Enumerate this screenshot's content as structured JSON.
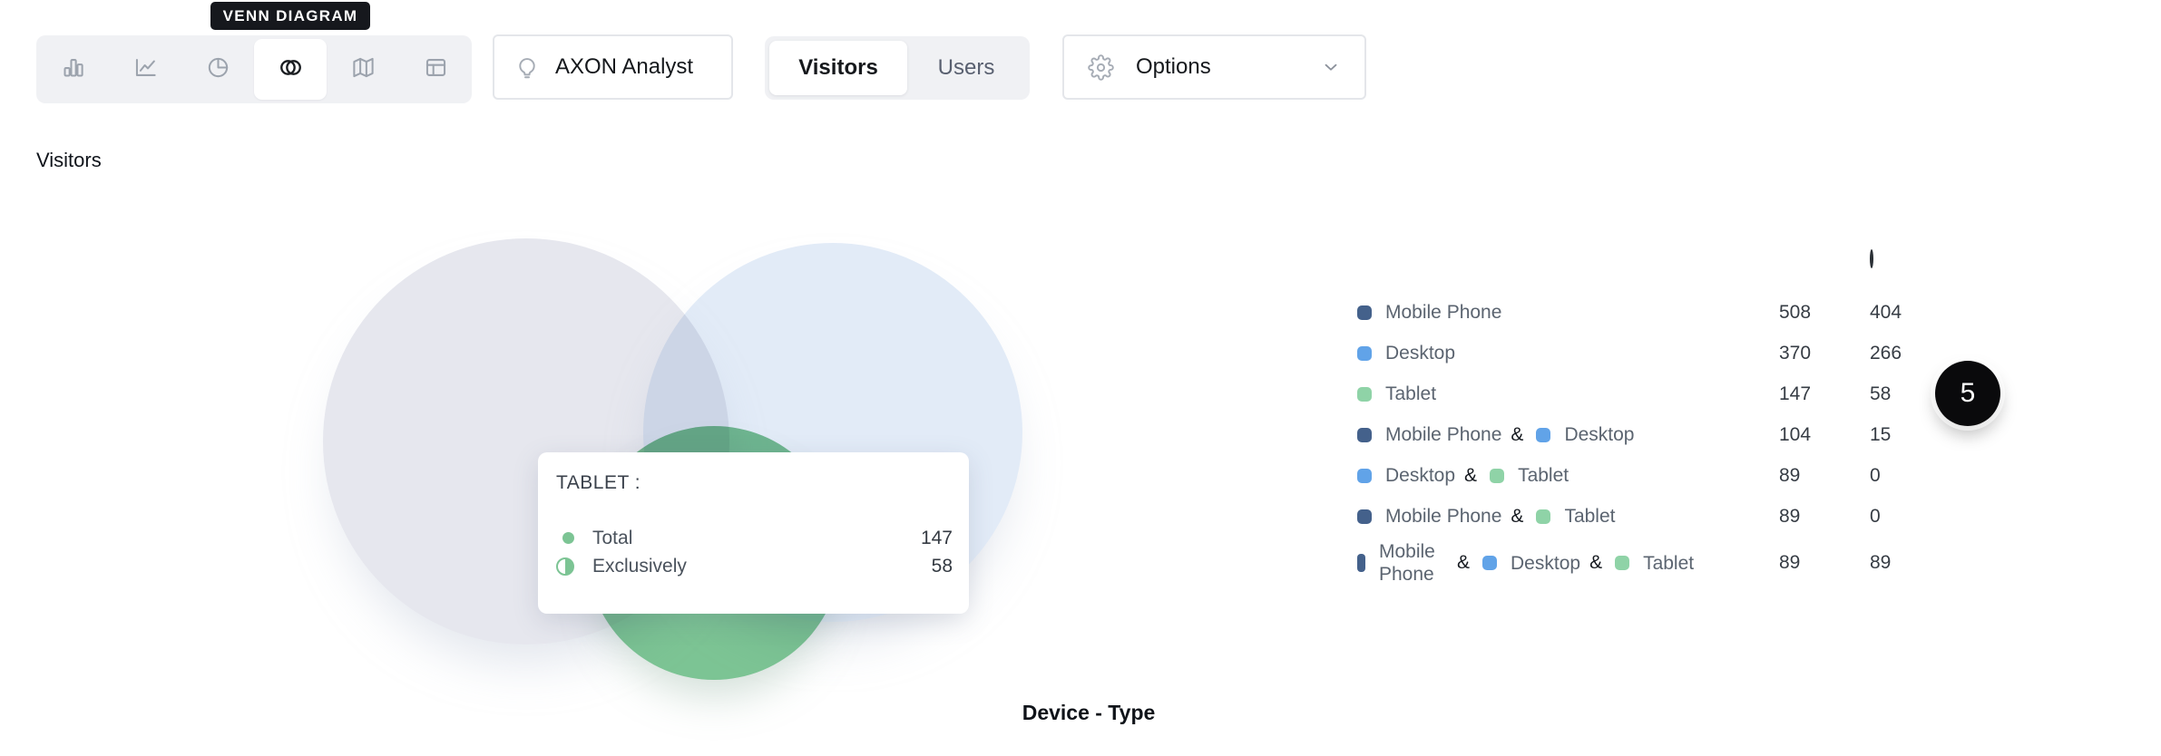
{
  "venn_tooltip_label": "VENN DIAGRAM",
  "toolbar": {
    "items": [
      "bar-chart",
      "line-chart",
      "pie-chart",
      "venn-diagram",
      "map",
      "table-layout"
    ],
    "selected": "venn-diagram"
  },
  "axon_button": {
    "label": "AXON Analyst"
  },
  "view_toggle": {
    "options": [
      "Visitors",
      "Users"
    ],
    "selected": "Visitors"
  },
  "options_button": {
    "label": "Options"
  },
  "page_title": "Visitors",
  "axis_label": "Device - Type",
  "badge": {
    "value": "5"
  },
  "colors": {
    "mobile_swatch": "#44618B",
    "desktop_swatch": "#61A3E8",
    "tablet_swatch": "#8FD3A7",
    "venn_mobile_fill": "#E6E7EE",
    "venn_desktop_fill": "#E2EBF7",
    "venn_tablet_fill": "#7CC494",
    "tooltip_accent": "#7CC494",
    "tooltip_bg_dark": "#16181D"
  },
  "chart_tooltip": {
    "title": "TABLET :",
    "rows": [
      {
        "icon": "total-dot",
        "label": "Total",
        "value": "147"
      },
      {
        "icon": "exclusively-half",
        "label": "Exclusively",
        "value": "58"
      }
    ]
  },
  "legend": {
    "header_icons": [
      "total-filled-circle",
      "exclusively-half-circle"
    ],
    "rows": [
      {
        "parts": [
          {
            "set": "mobile",
            "label": "Mobile Phone"
          }
        ],
        "total": "508",
        "exclusively": "404"
      },
      {
        "parts": [
          {
            "set": "desktop",
            "label": "Desktop"
          }
        ],
        "total": "370",
        "exclusively": "266"
      },
      {
        "parts": [
          {
            "set": "tablet",
            "label": "Tablet"
          }
        ],
        "total": "147",
        "exclusively": "58"
      },
      {
        "parts": [
          {
            "set": "mobile",
            "label": "Mobile Phone"
          },
          {
            "set": "desktop",
            "label": "Desktop"
          }
        ],
        "total": "104",
        "exclusively": "15"
      },
      {
        "parts": [
          {
            "set": "desktop",
            "label": "Desktop"
          },
          {
            "set": "tablet",
            "label": "Tablet"
          }
        ],
        "total": "89",
        "exclusively": "0"
      },
      {
        "parts": [
          {
            "set": "mobile",
            "label": "Mobile Phone"
          },
          {
            "set": "tablet",
            "label": "Tablet"
          }
        ],
        "total": "89",
        "exclusively": "0"
      },
      {
        "parts": [
          {
            "set": "mobile",
            "label": "Mobile Phone",
            "wrap": true,
            "thin": true
          },
          {
            "set": "desktop",
            "label": "Desktop"
          },
          {
            "set": "tablet",
            "label": "Tablet"
          }
        ],
        "total": "89",
        "exclusively": "89"
      }
    ]
  },
  "chart_data": {
    "type": "venn",
    "title": "Visitors",
    "xlabel": "Device - Type",
    "sets": [
      {
        "sets": [
          "Mobile Phone"
        ],
        "total": 508,
        "exclusively": 404
      },
      {
        "sets": [
          "Desktop"
        ],
        "total": 370,
        "exclusively": 266
      },
      {
        "sets": [
          "Tablet"
        ],
        "total": 147,
        "exclusively": 58
      },
      {
        "sets": [
          "Mobile Phone",
          "Desktop"
        ],
        "total": 104,
        "exclusively": 15
      },
      {
        "sets": [
          "Desktop",
          "Tablet"
        ],
        "total": 89,
        "exclusively": 0
      },
      {
        "sets": [
          "Mobile Phone",
          "Tablet"
        ],
        "total": 89,
        "exclusively": 0
      },
      {
        "sets": [
          "Mobile Phone",
          "Desktop",
          "Tablet"
        ],
        "total": 89,
        "exclusively": 89
      }
    ],
    "hovered_set": "Tablet"
  }
}
